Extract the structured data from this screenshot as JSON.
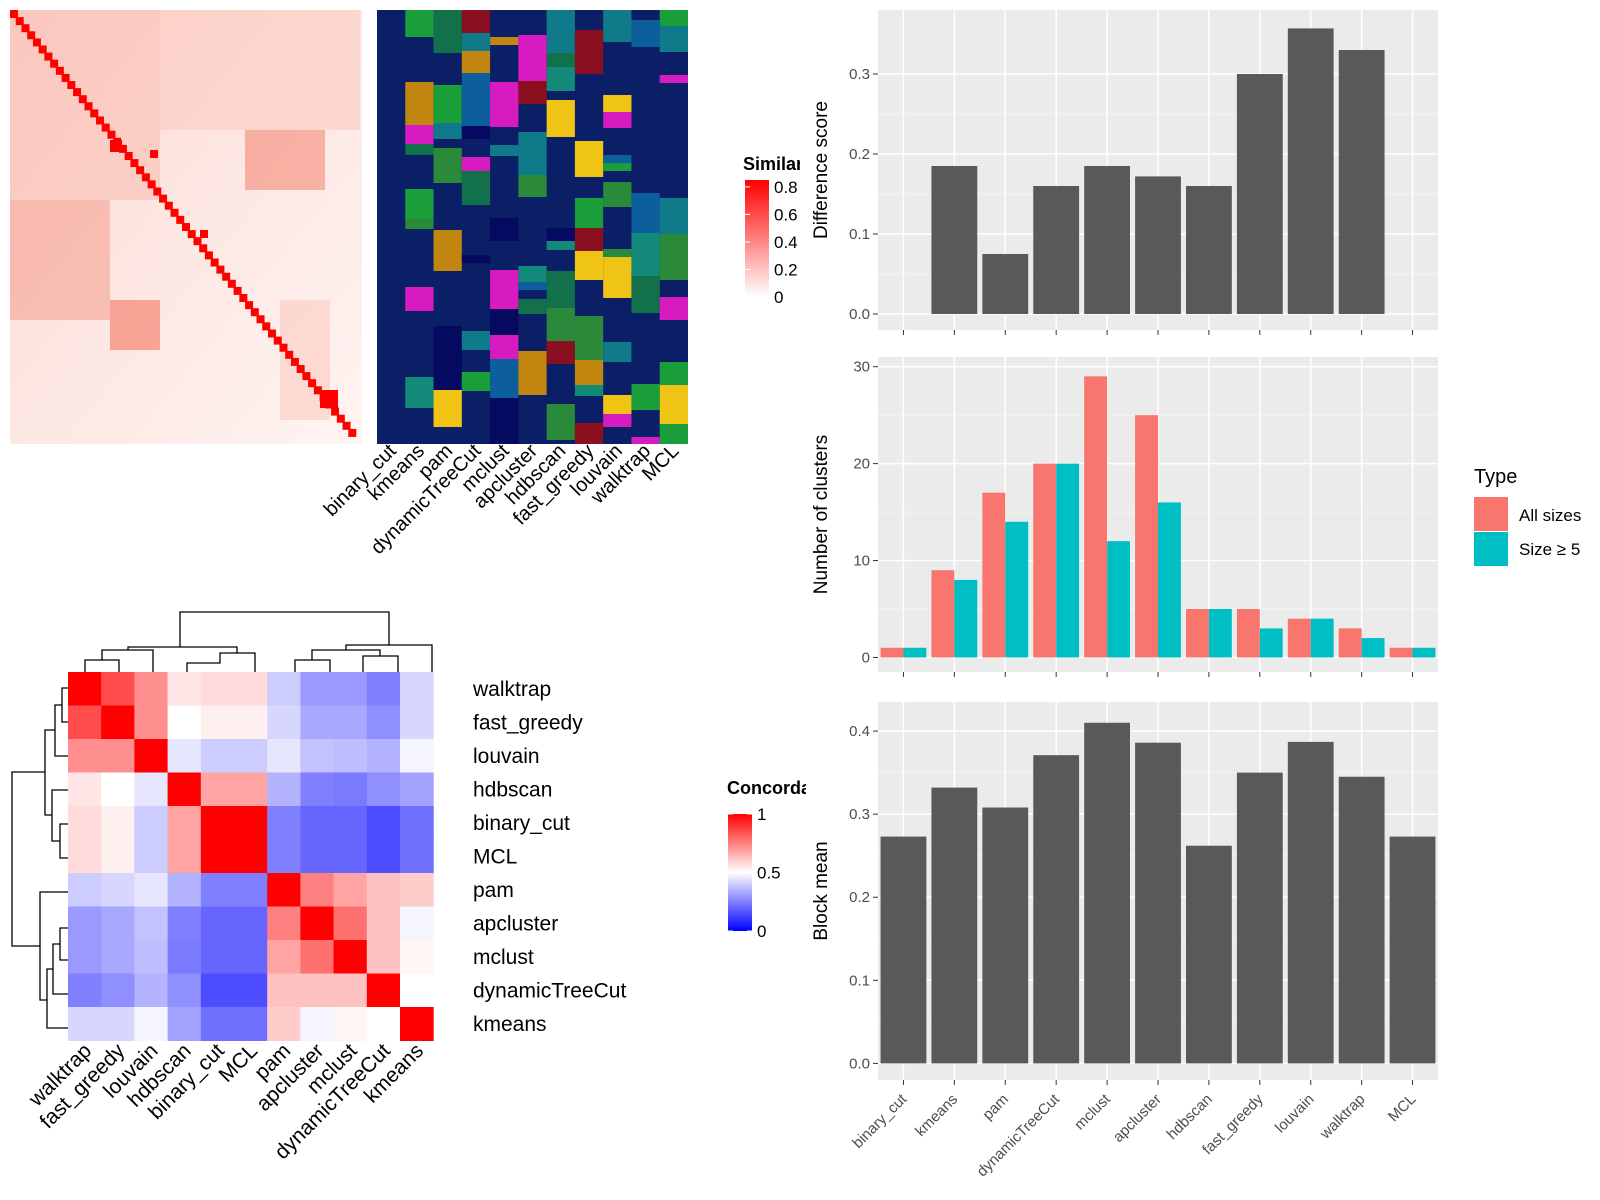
{
  "methods_tl_cols": [
    "binary_cut",
    "kmeans",
    "pam",
    "dynamicTreeCut",
    "mclust",
    "apcluster",
    "hdbscan",
    "fast_greedy",
    "louvain",
    "walktrap",
    "MCL"
  ],
  "similarity_legend": {
    "title": "Similarity",
    "ticks": [
      "0",
      "0.2",
      "0.4",
      "0.6",
      "0.8"
    ]
  },
  "concordance": {
    "order": [
      "walktrap",
      "fast_greedy",
      "louvain",
      "hdbscan",
      "binary_cut",
      "MCL",
      "pam",
      "apcluster",
      "mclust",
      "dynamicTreeCut",
      "kmeans"
    ],
    "legend": {
      "title": "Concordance",
      "ticks": [
        "0",
        "0.5",
        "1"
      ]
    },
    "matrix": [
      [
        1.0,
        0.85,
        0.72,
        0.55,
        0.57,
        0.57,
        0.4,
        0.3,
        0.3,
        0.25,
        0.42
      ],
      [
        0.85,
        1.0,
        0.72,
        0.5,
        0.53,
        0.53,
        0.42,
        0.33,
        0.33,
        0.28,
        0.42
      ],
      [
        0.72,
        0.72,
        1.0,
        0.45,
        0.4,
        0.4,
        0.45,
        0.38,
        0.37,
        0.35,
        0.48
      ],
      [
        0.55,
        0.5,
        0.45,
        1.0,
        0.68,
        0.68,
        0.35,
        0.25,
        0.24,
        0.28,
        0.32
      ],
      [
        0.57,
        0.53,
        0.4,
        0.68,
        1.0,
        1.0,
        0.25,
        0.2,
        0.2,
        0.15,
        0.22
      ],
      [
        0.57,
        0.53,
        0.4,
        0.68,
        1.0,
        1.0,
        0.25,
        0.2,
        0.2,
        0.15,
        0.22
      ],
      [
        0.4,
        0.42,
        0.45,
        0.35,
        0.25,
        0.25,
        1.0,
        0.75,
        0.68,
        0.62,
        0.6
      ],
      [
        0.3,
        0.33,
        0.38,
        0.25,
        0.2,
        0.2,
        0.75,
        1.0,
        0.78,
        0.62,
        0.48
      ],
      [
        0.3,
        0.33,
        0.37,
        0.24,
        0.2,
        0.2,
        0.68,
        0.78,
        1.0,
        0.62,
        0.52
      ],
      [
        0.25,
        0.28,
        0.35,
        0.28,
        0.15,
        0.15,
        0.62,
        0.62,
        0.62,
        1.0,
        0.5
      ],
      [
        0.42,
        0.42,
        0.48,
        0.32,
        0.22,
        0.22,
        0.6,
        0.48,
        0.52,
        0.5,
        1.0
      ]
    ]
  },
  "chart_data": [
    {
      "type": "bar",
      "categories": [
        "binary_cut",
        "kmeans",
        "pam",
        "dynamicTreeCut",
        "mclust",
        "apcluster",
        "hdbscan",
        "fast_greedy",
        "louvain",
        "walktrap",
        "MCL"
      ],
      "values": [
        0,
        0.185,
        0.075,
        0.16,
        0.185,
        0.172,
        0.16,
        0.3,
        0.357,
        0.33,
        0
      ],
      "ylabel": "Difference score",
      "ylim": [
        -0.02,
        0.38
      ],
      "yticks": [
        0.0,
        0.1,
        0.2,
        0.3
      ],
      "ytick_labels": [
        "0.0",
        "0.1",
        "0.2",
        "0.3"
      ],
      "grid": true
    },
    {
      "type": "bar",
      "categories": [
        "binary_cut",
        "kmeans",
        "pam",
        "dynamicTreeCut",
        "mclust",
        "apcluster",
        "hdbscan",
        "fast_greedy",
        "louvain",
        "walktrap",
        "MCL"
      ],
      "series": [
        {
          "name": "All sizes",
          "color": "#F8766D",
          "values": [
            1,
            9,
            17,
            20,
            29,
            25,
            5,
            5,
            4,
            3,
            1
          ]
        },
        {
          "name": "Size ≥ 5",
          "color": "#00BFC4",
          "values": [
            1,
            8,
            14,
            20,
            12,
            16,
            5,
            3,
            4,
            2,
            1
          ]
        }
      ],
      "ylabel": "Number of clusters",
      "ylim": [
        -1.5,
        31
      ],
      "yticks": [
        0,
        10,
        20,
        30
      ],
      "ytick_labels": [
        "0",
        "10",
        "20",
        "30"
      ],
      "legend": {
        "title": "Type",
        "position": "right"
      },
      "grid": true
    },
    {
      "type": "bar",
      "categories": [
        "binary_cut",
        "kmeans",
        "pam",
        "dynamicTreeCut",
        "mclust",
        "apcluster",
        "hdbscan",
        "fast_greedy",
        "louvain",
        "walktrap",
        "MCL"
      ],
      "values": [
        0.273,
        0.332,
        0.308,
        0.371,
        0.41,
        0.386,
        0.262,
        0.35,
        0.387,
        0.345,
        0.273
      ],
      "ylabel": "Block mean",
      "ylim": [
        -0.02,
        0.435
      ],
      "yticks": [
        0.0,
        0.1,
        0.2,
        0.3,
        0.4
      ],
      "ytick_labels": [
        "0.0",
        "0.1",
        "0.2",
        "0.3",
        "0.4"
      ],
      "grid": true
    }
  ]
}
